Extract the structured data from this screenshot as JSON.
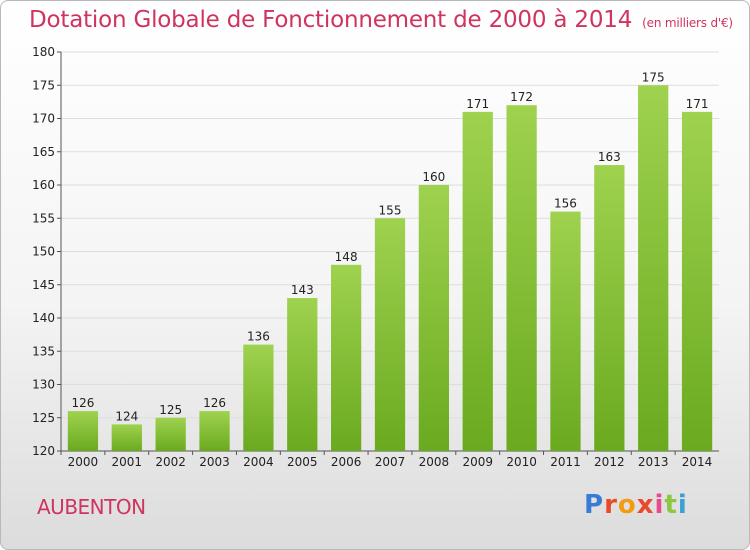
{
  "title": "Dotation Globale de Fonctionnement de 2000 à 2014",
  "subtitle": "(en milliers d'€)",
  "commune": "AUBENTON",
  "logo": {
    "text": "Proxiti"
  },
  "colors": {
    "title": "#d0345e",
    "bar_top": "#9fd24f",
    "bar_bottom": "#6aaa1f",
    "grid": "#dddddd"
  },
  "chart_data": {
    "type": "bar",
    "title": "Dotation Globale de Fonctionnement de 2000 à 2014",
    "subtitle": "(en milliers d'€)",
    "xlabel": "",
    "ylabel": "",
    "categories": [
      "2000",
      "2001",
      "2002",
      "2003",
      "2004",
      "2005",
      "2006",
      "2007",
      "2008",
      "2009",
      "2010",
      "2011",
      "2012",
      "2013",
      "2014"
    ],
    "values": [
      126,
      124,
      125,
      126,
      136,
      143,
      148,
      155,
      160,
      171,
      172,
      156,
      163,
      175,
      171
    ],
    "ylim": [
      120,
      180
    ],
    "yticks": [
      120,
      125,
      130,
      135,
      140,
      145,
      150,
      155,
      160,
      165,
      170,
      175,
      180
    ],
    "grid": true,
    "legend": "none"
  }
}
